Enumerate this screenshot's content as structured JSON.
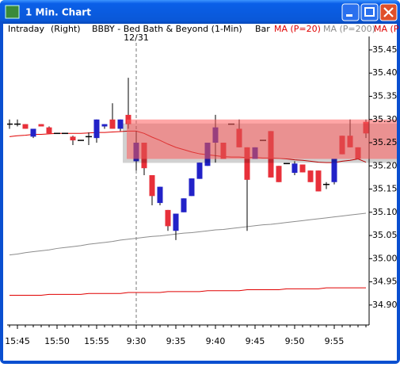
{
  "window": {
    "title": "1 Min. Chart"
  },
  "chart_data": {
    "type": "candlestick",
    "header": {
      "period": "Intraday",
      "axis_side": "(Right)",
      "symbol": "BBBY - Bed Bath & Beyond (1-Min)",
      "style": "Bar"
    },
    "date_label": "12/31",
    "session_start": "9:30",
    "categories": [
      null,
      "15:45",
      null,
      null,
      null,
      null,
      "15:50",
      null,
      null,
      null,
      null,
      "15:55",
      null,
      null,
      null,
      null,
      "9:30",
      null,
      null,
      null,
      null,
      "9:35",
      null,
      null,
      null,
      null,
      "9:40",
      null,
      null,
      null,
      null,
      "9:45",
      null,
      null,
      null,
      null,
      "9:50",
      null,
      null,
      null,
      null,
      "9:55",
      null,
      null,
      null,
      null
    ],
    "open": [
      35.29,
      35.29,
      35.29,
      35.263,
      35.29,
      35.283,
      35.27,
      35.27,
      35.263,
      35.255,
      35.263,
      35.26,
      35.285,
      35.3,
      35.28,
      35.31,
      35.21,
      35.25,
      35.18,
      35.12,
      35.105,
      35.06,
      35.1,
      35.135,
      35.172,
      35.2,
      35.25,
      35.25,
      35.29,
      35.28,
      35.24,
      35.215,
      35.255,
      35.275,
      35.2,
      35.205,
      35.185,
      35.203,
      35.19,
      35.19,
      35.16,
      35.165,
      35.265,
      35.265,
      35.24,
      35.295
    ],
    "high": [
      35.3,
      35.3,
      35.29,
      35.28,
      35.29,
      35.285,
      35.27,
      35.27,
      35.265,
      35.255,
      35.272,
      35.3,
      35.29,
      35.335,
      35.3,
      35.39,
      35.275,
      35.25,
      35.18,
      35.155,
      35.105,
      35.097,
      35.13,
      35.173,
      35.207,
      35.25,
      35.31,
      35.25,
      35.29,
      35.3,
      35.24,
      35.24,
      35.255,
      35.275,
      35.2,
      35.205,
      35.21,
      35.203,
      35.19,
      35.19,
      35.165,
      35.215,
      35.265,
      35.3,
      35.24,
      35.3
    ],
    "low": [
      35.28,
      35.285,
      35.28,
      35.26,
      35.285,
      35.27,
      35.27,
      35.27,
      35.245,
      35.255,
      35.245,
      35.25,
      35.28,
      35.28,
      35.275,
      35.28,
      35.19,
      35.18,
      35.115,
      35.115,
      35.06,
      35.04,
      35.1,
      35.135,
      35.172,
      35.2,
      35.207,
      35.215,
      35.29,
      35.24,
      35.06,
      35.215,
      35.255,
      35.175,
      35.165,
      35.205,
      35.18,
      35.186,
      35.165,
      35.145,
      35.15,
      35.16,
      35.225,
      35.24,
      35.215,
      35.26
    ],
    "close": [
      35.29,
      35.29,
      35.28,
      35.28,
      35.285,
      35.27,
      35.27,
      35.27,
      35.255,
      35.255,
      35.263,
      35.3,
      35.29,
      35.28,
      35.3,
      35.29,
      35.25,
      35.195,
      35.135,
      35.155,
      35.07,
      35.097,
      35.13,
      35.173,
      35.207,
      35.25,
      35.283,
      35.215,
      35.29,
      35.24,
      35.17,
      35.24,
      35.255,
      35.175,
      35.165,
      35.205,
      35.205,
      35.186,
      35.165,
      35.145,
      35.16,
      35.215,
      35.225,
      35.24,
      35.215,
      35.27
    ],
    "up_color": "#2222c8",
    "down_color": "#e8303a",
    "flat_color": "#000000",
    "highlight": {
      "low": 35.215,
      "high": 35.3,
      "color": "#ff5c5c"
    },
    "series": [
      {
        "name": "MA (P=20)",
        "color": "#e00000",
        "values": [
          35.263,
          35.265,
          35.266,
          35.268,
          35.268,
          35.269,
          35.27,
          35.27,
          35.27,
          35.27,
          35.271,
          35.272,
          35.272,
          35.273,
          35.274,
          35.275,
          35.275,
          35.27,
          35.262,
          35.255,
          35.247,
          35.24,
          35.235,
          35.23,
          35.226,
          35.224,
          35.222,
          35.22,
          35.219,
          35.219,
          35.218,
          35.218,
          35.217,
          35.217,
          35.216,
          35.215,
          35.213,
          35.212,
          35.21,
          35.208,
          35.207,
          35.207,
          35.21,
          35.212,
          35.215,
          35.208
        ]
      },
      {
        "name": "MA (P=200)",
        "color": "#8c8c8c",
        "values": [
          35.008,
          35.01,
          35.013,
          35.015,
          35.017,
          35.019,
          35.022,
          35.024,
          35.026,
          35.028,
          35.031,
          35.033,
          35.035,
          35.037,
          35.04,
          35.042,
          35.044,
          35.046,
          35.048,
          35.049,
          35.051,
          35.053,
          35.055,
          35.056,
          35.058,
          35.06,
          35.062,
          35.063,
          35.065,
          35.067,
          35.069,
          35.071,
          35.073,
          35.074,
          35.076,
          35.078,
          35.08,
          35.082,
          35.084,
          35.086,
          35.088,
          35.09,
          35.092,
          35.094,
          35.096,
          35.098
        ]
      },
      {
        "name": "MA (P",
        "color": "#e00000",
        "values": [
          34.921,
          34.921,
          34.921,
          34.921,
          34.921,
          34.923,
          34.923,
          34.923,
          34.923,
          34.923,
          34.925,
          34.925,
          34.925,
          34.925,
          34.925,
          34.927,
          34.927,
          34.927,
          34.927,
          34.927,
          34.929,
          34.929,
          34.929,
          34.929,
          34.929,
          34.931,
          34.931,
          34.931,
          34.931,
          34.931,
          34.933,
          34.933,
          34.933,
          34.933,
          34.933,
          34.935,
          34.935,
          34.935,
          34.935,
          34.935,
          34.937,
          34.937,
          34.937,
          34.937,
          34.937,
          34.937
        ]
      }
    ],
    "ylim": [
      34.857,
      35.479
    ],
    "yticks": [
      35.45,
      {
        "value": 35.4,
        "label": "35.40"
      },
      35.35,
      {
        "value": 35.3,
        "label": "35.30"
      },
      35.25,
      {
        "value": 35.2,
        "label": "35.20"
      },
      35.15,
      {
        "value": 35.1,
        "label": "35.10"
      },
      35.05,
      {
        "value": 35,
        "label": "35.00"
      },
      34.95,
      {
        "value": 34.9,
        "label": "34.90"
      }
    ]
  }
}
